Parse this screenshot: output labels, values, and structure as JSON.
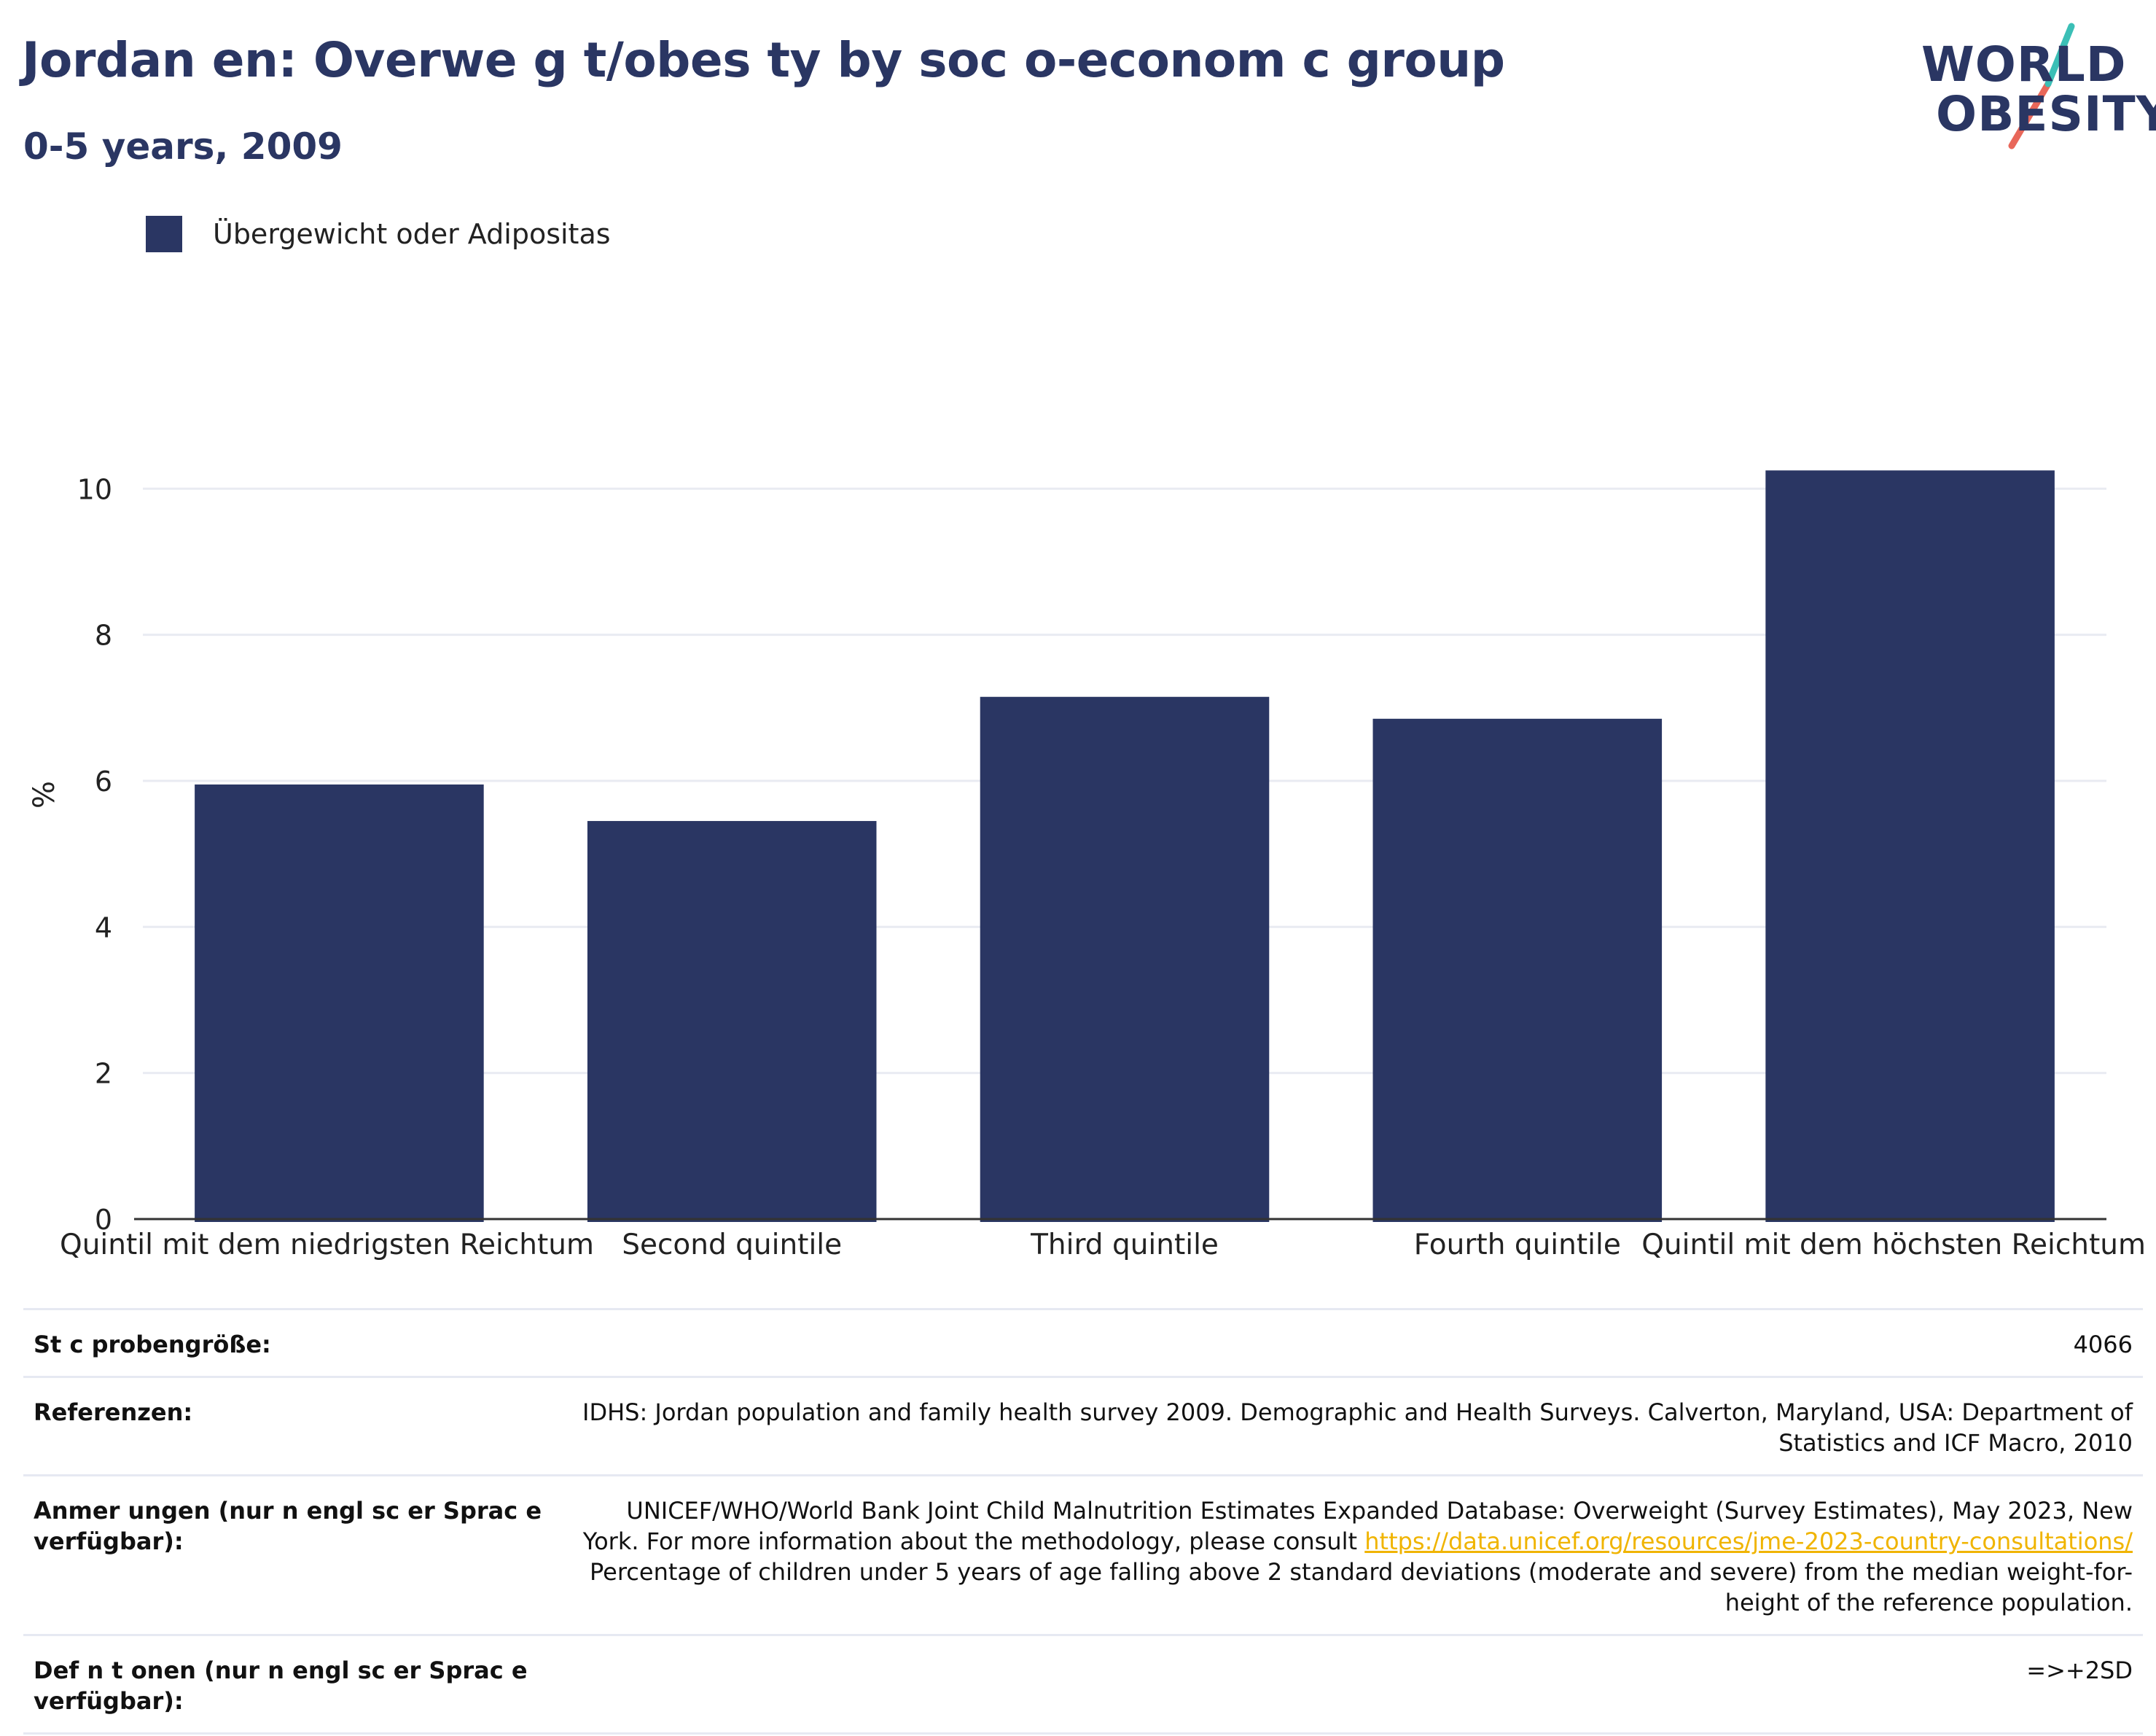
{
  "header": {
    "title": "Jordan en: Overwe g  t/obes ty by soc o-econom c group",
    "subtitle": "0-5 years, 2009"
  },
  "logo": {
    "line1": "WORLD",
    "line2": "OBESITY",
    "text_color": "#2a3663",
    "stroke_teal": "#3bbfb6",
    "stroke_coral": "#e8675a"
  },
  "chart_data": {
    "type": "bar",
    "categories": [
      "Quintil mit dem niedrigsten Reichtum",
      "Second quintile",
      "Third quintile",
      "Fourth quintile",
      "Quintil mit dem höchsten Reichtum"
    ],
    "series": [
      {
        "name": "Übergewicht oder Adipositas",
        "values": [
          5.95,
          5.45,
          7.15,
          6.85,
          10.25
        ],
        "color": "#2a3663"
      }
    ],
    "ylabel": "%",
    "xlabel": "",
    "ylim": [
      0,
      11.5
    ],
    "yticks": [
      0,
      2,
      4,
      6,
      8,
      10
    ],
    "grid": true,
    "legend_position": "top-left"
  },
  "meta": {
    "rows": [
      {
        "label": "St c  probengröße:",
        "value": "4066"
      },
      {
        "label": "Referenzen:",
        "value": "IDHS: Jordan population and family health survey 2009. Demographic and Health Surveys. Calverton, Maryland, USA: Department of Statistics and ICF Macro, 2010"
      },
      {
        "label": "Anmer ungen (nur  n engl sc  er Sprac  e verfügbar):",
        "value_before": "UNICEF/WHO/World Bank Joint Child Malnutrition Estimates Expanded Database: Overweight (Survey Estimates), May 2023, New York. For more information about the methodology, please consult",
        "link": "https://data.unicef.org/resources/jme-2023-country-consultations/",
        "value_after": "Percentage of children under 5 years of age falling above 2 standard deviations (moderate and severe) from the median weight-for-height of the reference population."
      },
      {
        "label": "Def n t onen (nur  n engl sc  er Sprac  e verfügbar):",
        "value": "=>+2SD"
      }
    ]
  }
}
